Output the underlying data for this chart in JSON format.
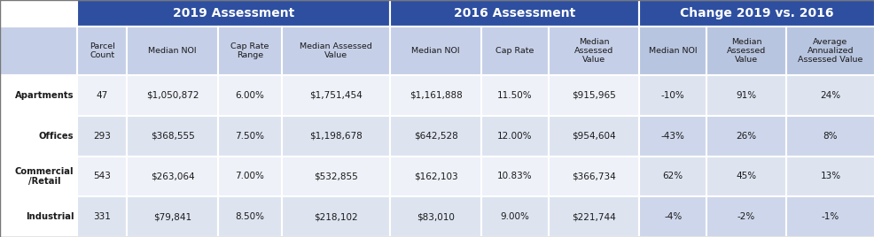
{
  "title_2019": "2019 Assessment",
  "title_2016": "2016 Assessment",
  "title_change": "Change 2019 vs. 2016",
  "col_headers": [
    "Parcel\nCount",
    "Median NOI",
    "Cap Rate\nRange",
    "Median Assessed\nValue",
    "Median NOI",
    "Cap Rate",
    "Median\nAssessed\nValue",
    "Median NOI",
    "Median\nAssessed\nValue",
    "Average\nAnnualized\nAssessed Value"
  ],
  "row_labels": [
    "Apartments",
    "Offices",
    "Commercial\n/Retail",
    "Industrial"
  ],
  "rows": [
    [
      "47",
      "$1,050,872",
      "6.00%",
      "$1,751,454",
      "$1,161,888",
      "11.50%",
      "$915,965",
      "-10%",
      "91%",
      "24%"
    ],
    [
      "293",
      "$368,555",
      "7.50%",
      "$1,198,678",
      "$642,528",
      "12.00%",
      "$954,604",
      "-43%",
      "26%",
      "8%"
    ],
    [
      "543",
      "$263,064",
      "7.00%",
      "$532,855",
      "$162,103",
      "10.83%",
      "$366,734",
      "62%",
      "45%",
      "13%"
    ],
    [
      "331",
      "$79,841",
      "8.50%",
      "$218,102",
      "$83,010",
      "9.00%",
      "$221,744",
      "-4%",
      "-2%",
      "-1%"
    ]
  ],
  "header_bg": "#2e4fa0",
  "header_text": "#ffffff",
  "subheader_bg_2019": "#c5cfe8",
  "subheader_bg_2016": "#c5cfe8",
  "subheader_bg_change": "#b8c5e0",
  "row_bg_odd": "#dde4f0",
  "row_bg_even": "#eef1f8",
  "change_row_bg_odd": "#cdd6ea",
  "change_row_bg_even": "#dde4f0",
  "border_color": "#ffffff",
  "text_color": "#1a1a1a",
  "label_col_bg": "#ffffff",
  "label_subheader_bg": "#c5cfe8"
}
